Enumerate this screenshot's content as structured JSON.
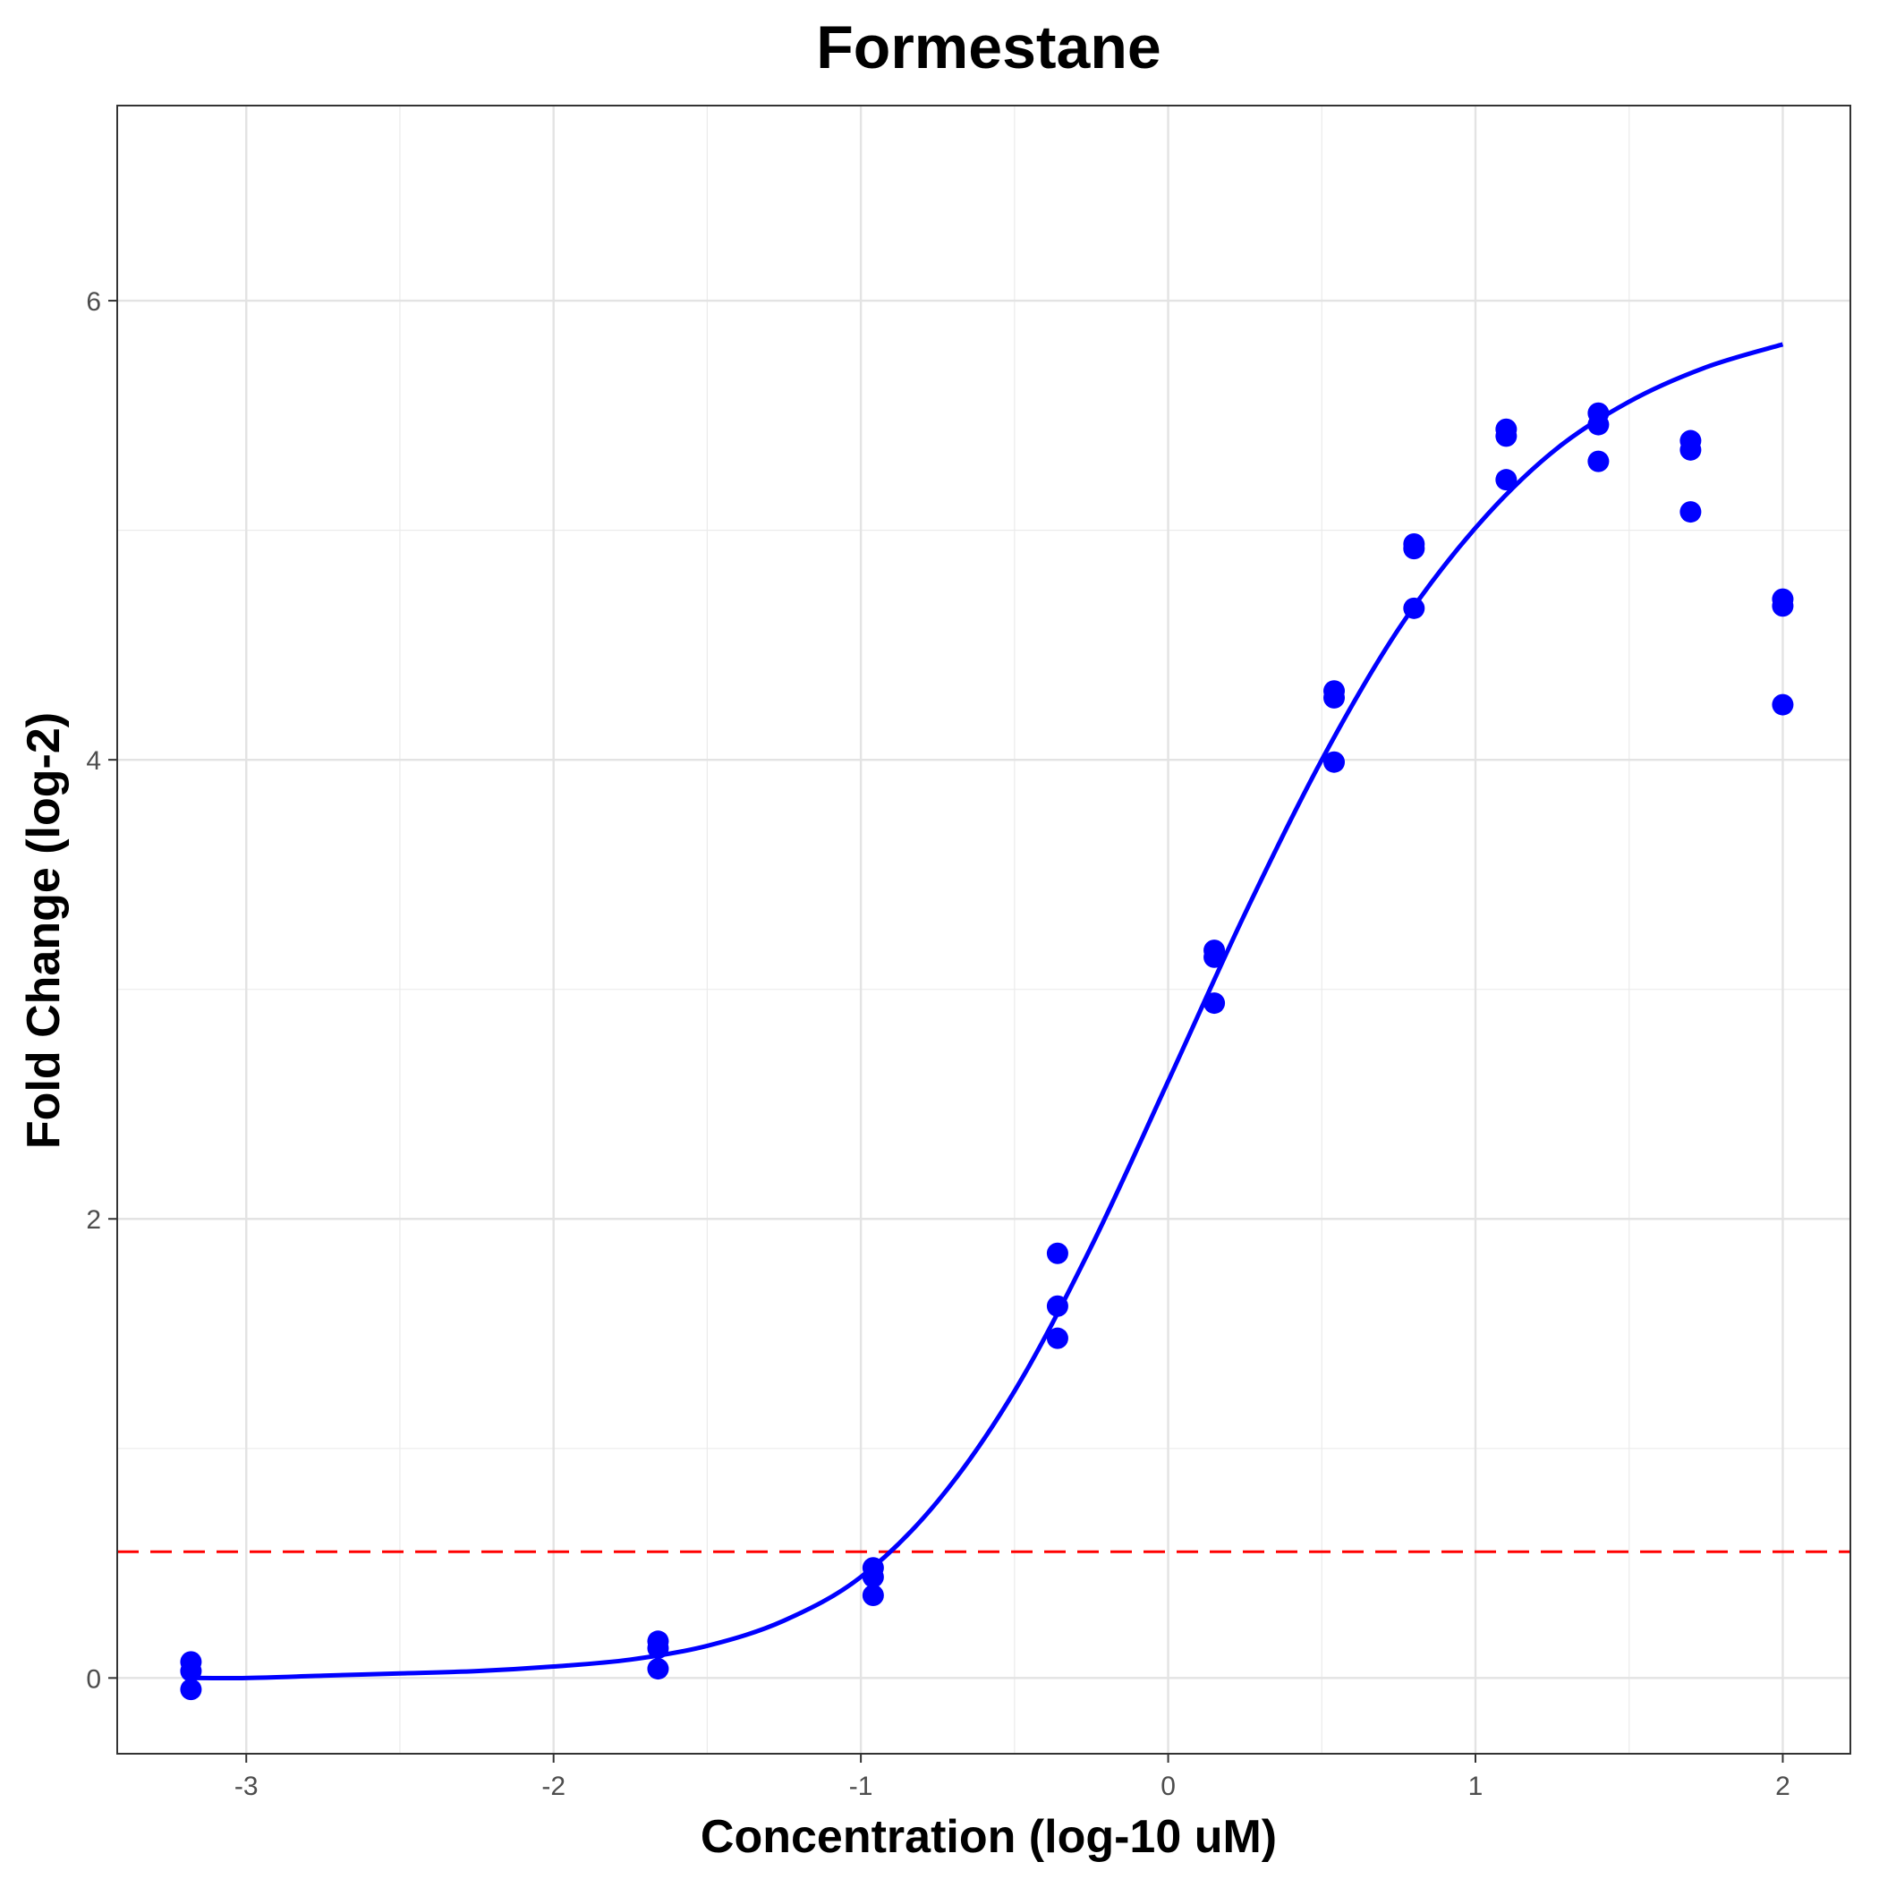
{
  "chart_data": {
    "type": "scatter",
    "title": "Formestane",
    "xlabel": "Concentration (log-10 uM)",
    "ylabel": "Fold Change (log-2)",
    "xlim": [
      -3.42,
      2.22
    ],
    "ylim": [
      -0.33,
      6.85
    ],
    "x_ticks": [
      -3,
      -2,
      -1,
      0,
      1,
      2
    ],
    "x_tick_labels": [
      "-3",
      "-2",
      "-1",
      "0",
      "1",
      "2"
    ],
    "y_ticks": [
      0,
      2,
      4,
      6
    ],
    "y_tick_labels": [
      "0",
      "2",
      "4",
      "6"
    ],
    "grid": true,
    "legend": "none",
    "point_color": "#0000ff",
    "curve_color": "#0000ff",
    "threshold_color": "#ff0000",
    "series": [
      {
        "type": "scatter",
        "points": [
          [
            -3.18,
            0.07
          ],
          [
            -3.18,
            0.03
          ],
          [
            -3.18,
            -0.05
          ],
          [
            -1.66,
            0.16
          ],
          [
            -1.66,
            0.13
          ],
          [
            -1.66,
            0.04
          ],
          [
            -0.96,
            0.48
          ],
          [
            -0.96,
            0.44
          ],
          [
            -0.96,
            0.36
          ],
          [
            -0.36,
            1.85
          ],
          [
            -0.36,
            1.62
          ],
          [
            -0.36,
            1.48
          ],
          [
            0.15,
            3.17
          ],
          [
            0.15,
            3.14
          ],
          [
            0.15,
            2.94
          ],
          [
            0.54,
            4.3
          ],
          [
            0.54,
            4.27
          ],
          [
            0.54,
            3.99
          ],
          [
            0.8,
            4.94
          ],
          [
            0.8,
            4.92
          ],
          [
            0.8,
            4.66
          ],
          [
            1.1,
            5.44
          ],
          [
            1.1,
            5.41
          ],
          [
            1.1,
            5.22
          ],
          [
            1.4,
            5.51
          ],
          [
            1.4,
            5.46
          ],
          [
            1.4,
            5.3
          ],
          [
            1.7,
            5.39
          ],
          [
            1.7,
            5.35
          ],
          [
            1.7,
            5.08
          ],
          [
            2.0,
            4.7
          ],
          [
            2.0,
            4.67
          ],
          [
            2.0,
            4.24
          ]
        ]
      },
      {
        "type": "line",
        "points": [
          [
            -3.18,
            0.0
          ],
          [
            -3.0,
            0.0
          ],
          [
            -2.75,
            0.01
          ],
          [
            -2.5,
            0.02
          ],
          [
            -2.25,
            0.03
          ],
          [
            -2.0,
            0.05
          ],
          [
            -1.75,
            0.08
          ],
          [
            -1.5,
            0.14
          ],
          [
            -1.25,
            0.25
          ],
          [
            -1.0,
            0.44
          ],
          [
            -0.75,
            0.77
          ],
          [
            -0.5,
            1.25
          ],
          [
            -0.25,
            1.88
          ],
          [
            0.0,
            2.6
          ],
          [
            0.25,
            3.33
          ],
          [
            0.5,
            4.0
          ],
          [
            0.75,
            4.57
          ],
          [
            1.0,
            5.01
          ],
          [
            1.25,
            5.34
          ],
          [
            1.5,
            5.56
          ],
          [
            1.75,
            5.71
          ],
          [
            2.0,
            5.81
          ]
        ]
      },
      {
        "type": "hline",
        "y": 0.55,
        "style": "dashed"
      }
    ]
  }
}
